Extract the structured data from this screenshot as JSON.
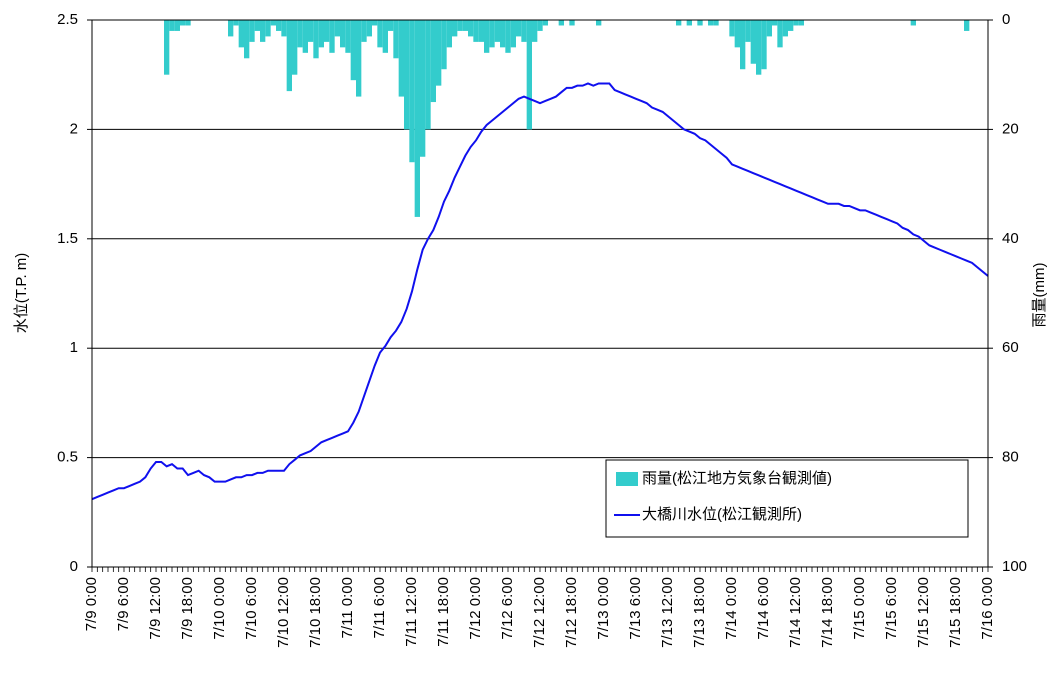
{
  "chart_data": {
    "type": "combo",
    "categories": [
      "7/9 0:00",
      null,
      null,
      null,
      null,
      null,
      "7/9 6:00",
      null,
      null,
      null,
      null,
      null,
      "7/9 12:00",
      null,
      null,
      null,
      null,
      null,
      "7/9 18:00",
      null,
      null,
      null,
      null,
      null,
      "7/10 0:00",
      null,
      null,
      null,
      null,
      null,
      "7/10 6:00",
      null,
      null,
      null,
      null,
      null,
      "7/10 12:00",
      null,
      null,
      null,
      null,
      null,
      "7/10 18:00",
      null,
      null,
      null,
      null,
      null,
      "7/11 0:00",
      null,
      null,
      null,
      null,
      null,
      "7/11 6:00",
      null,
      null,
      null,
      null,
      null,
      "7/11 12:00",
      null,
      null,
      null,
      null,
      null,
      "7/11 18:00",
      null,
      null,
      null,
      null,
      null,
      "7/12 0:00",
      null,
      null,
      null,
      null,
      null,
      "7/12 6:00",
      null,
      null,
      null,
      null,
      null,
      "7/12 12:00",
      null,
      null,
      null,
      null,
      null,
      "7/12 18:00",
      null,
      null,
      null,
      null,
      null,
      "7/13 0:00",
      null,
      null,
      null,
      null,
      null,
      "7/13 6:00",
      null,
      null,
      null,
      null,
      null,
      "7/13 12:00",
      null,
      null,
      null,
      null,
      null,
      "7/13 18:00",
      null,
      null,
      null,
      null,
      null,
      "7/14 0:00",
      null,
      null,
      null,
      null,
      null,
      "7/14 6:00",
      null,
      null,
      null,
      null,
      null,
      "7/14 12:00",
      null,
      null,
      null,
      null,
      null,
      "7/14 18:00",
      null,
      null,
      null,
      null,
      null,
      "7/15 0:00",
      null,
      null,
      null,
      null,
      null,
      "7/15 6:00",
      null,
      null,
      null,
      null,
      null,
      "7/15 12:00",
      null,
      null,
      null,
      null,
      null,
      "7/15 18:00",
      null,
      null,
      null,
      null,
      null,
      "7/16 0:00"
    ],
    "series": [
      {
        "name": "雨量(松江地方気象台観測値)",
        "type": "bar",
        "axis": "y2",
        "color": "#33cccc",
        "values": [
          0,
          0,
          0,
          0,
          0,
          0,
          0,
          0,
          0,
          0,
          0,
          0,
          0,
          0,
          10,
          2,
          2,
          1,
          1,
          0,
          0,
          0,
          0,
          0,
          0,
          0,
          3,
          1,
          5,
          7,
          4,
          2,
          4,
          3,
          1,
          2,
          3,
          13,
          10,
          5,
          6,
          4,
          7,
          5,
          4,
          6,
          3,
          5,
          6,
          11,
          14,
          4,
          3,
          1,
          5,
          6,
          2,
          7,
          14,
          20,
          26,
          36,
          25,
          20,
          15,
          12,
          9,
          5,
          3,
          2,
          2,
          3,
          4,
          4,
          6,
          5,
          4,
          5,
          6,
          5,
          3,
          4,
          20,
          4,
          2,
          1,
          0,
          0,
          1,
          0,
          1,
          0,
          0,
          0,
          0,
          1,
          0,
          0,
          0,
          0,
          0,
          0,
          0,
          0,
          0,
          0,
          0,
          0,
          0,
          0,
          1,
          0,
          1,
          0,
          1,
          0,
          1,
          1,
          0,
          0,
          3,
          5,
          9,
          4,
          8,
          10,
          9,
          3,
          1,
          5,
          3,
          2,
          1,
          1,
          0,
          0,
          0,
          0,
          0,
          0,
          0,
          0,
          0,
          0,
          0,
          0,
          0,
          0,
          0,
          0,
          0,
          0,
          0,
          0,
          1,
          0,
          0,
          0,
          0,
          0,
          0,
          0,
          0,
          0,
          2,
          0,
          0,
          0,
          0
        ]
      },
      {
        "name": "大橋川水位(松江観測所)",
        "type": "line",
        "color": "#1010ee",
        "values": [
          0.31,
          0.32,
          0.33,
          0.34,
          0.35,
          0.36,
          0.36,
          0.37,
          0.38,
          0.39,
          0.41,
          0.45,
          0.48,
          0.48,
          0.46,
          0.47,
          0.45,
          0.45,
          0.42,
          0.43,
          0.44,
          0.42,
          0.41,
          0.39,
          0.39,
          0.39,
          0.4,
          0.41,
          0.41,
          0.42,
          0.42,
          0.43,
          0.43,
          0.44,
          0.44,
          0.44,
          0.44,
          0.47,
          0.49,
          0.51,
          0.52,
          0.53,
          0.55,
          0.57,
          0.58,
          0.59,
          0.6,
          0.61,
          0.62,
          0.66,
          0.71,
          0.78,
          0.85,
          0.92,
          0.98,
          1.01,
          1.05,
          1.08,
          1.12,
          1.18,
          1.26,
          1.36,
          1.45,
          1.5,
          1.54,
          1.6,
          1.67,
          1.72,
          1.78,
          1.83,
          1.88,
          1.92,
          1.95,
          1.99,
          2.02,
          2.04,
          2.06,
          2.08,
          2.1,
          2.12,
          2.14,
          2.15,
          2.14,
          2.13,
          2.12,
          2.13,
          2.14,
          2.15,
          2.17,
          2.19,
          2.19,
          2.2,
          2.2,
          2.21,
          2.2,
          2.21,
          2.21,
          2.21,
          2.18,
          2.17,
          2.16,
          2.15,
          2.14,
          2.13,
          2.12,
          2.1,
          2.09,
          2.08,
          2.06,
          2.04,
          2.02,
          2.0,
          1.99,
          1.98,
          1.96,
          1.95,
          1.93,
          1.91,
          1.89,
          1.87,
          1.84,
          1.83,
          1.82,
          1.81,
          1.8,
          1.79,
          1.78,
          1.77,
          1.76,
          1.75,
          1.74,
          1.73,
          1.72,
          1.71,
          1.7,
          1.69,
          1.68,
          1.67,
          1.66,
          1.66,
          1.66,
          1.65,
          1.65,
          1.64,
          1.63,
          1.63,
          1.62,
          1.61,
          1.6,
          1.59,
          1.58,
          1.57,
          1.55,
          1.54,
          1.52,
          1.51,
          1.49,
          1.47,
          1.46,
          1.45,
          1.44,
          1.43,
          1.42,
          1.41,
          1.4,
          1.39,
          1.37,
          1.35,
          1.33
        ]
      }
    ],
    "ylabel": "水位(T.P. m)",
    "y2label": "雨量(mm)",
    "ylim": [
      0,
      2.5
    ],
    "yticks": [
      0,
      0.5,
      1,
      1.5,
      2,
      2.5
    ],
    "y2lim": [
      0,
      100
    ],
    "y2ticks": [
      0,
      20,
      40,
      60,
      80,
      100
    ],
    "y2_inverted": true,
    "grid": true,
    "legend": "lower right"
  }
}
